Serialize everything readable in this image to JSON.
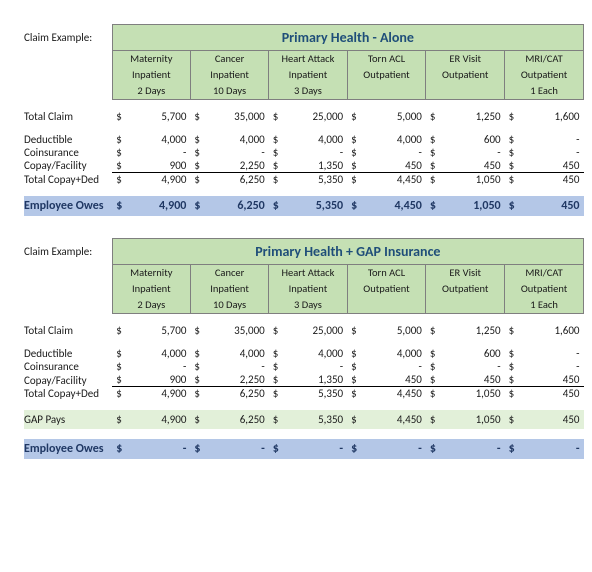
{
  "labels": {
    "claim_example": "Claim Example:",
    "total_claim": "Total Claim",
    "deductible": "Deductible",
    "coinsurance": "Coinsurance",
    "copay": "Copay/Facility",
    "total_copay_ded": "Total Copay+Ded",
    "employee_owes": "Employee Owes",
    "gap_pays": "GAP Pays"
  },
  "columns": [
    {
      "l1": "Maternity",
      "l2": "Inpatient",
      "l3": "2 Days"
    },
    {
      "l1": "Cancer",
      "l2": "Inpatient",
      "l3": "10 Days"
    },
    {
      "l1": "Heart Attack",
      "l2": "Inpatient",
      "l3": "3 Days"
    },
    {
      "l1": "Torn ACL",
      "l2": "Outpatient",
      "l3": ""
    },
    {
      "l1": "ER Visit",
      "l2": "Outpatient",
      "l3": ""
    },
    {
      "l1": "MRI/CAT",
      "l2": "Outpatient",
      "l3": "1 Each"
    }
  ],
  "tables": [
    {
      "title": "Primary Health - Alone",
      "rows": {
        "total_claim": [
          "5,700",
          "35,000",
          "25,000",
          "5,000",
          "1,250",
          "1,600"
        ],
        "deductible": [
          "4,000",
          "4,000",
          "4,000",
          "4,000",
          "600",
          "-"
        ],
        "coinsurance": [
          "-",
          "-",
          "-",
          "-",
          "-",
          "-"
        ],
        "copay": [
          "900",
          "2,250",
          "1,350",
          "450",
          "450",
          "450"
        ],
        "total_cd": [
          "4,900",
          "6,250",
          "5,350",
          "4,450",
          "1,050",
          "450"
        ],
        "gap_pays": null,
        "owes": [
          "4,900",
          "6,250",
          "5,350",
          "4,450",
          "1,050",
          "450"
        ]
      }
    },
    {
      "title": "Primary Health + GAP Insurance",
      "rows": {
        "total_claim": [
          "5,700",
          "35,000",
          "25,000",
          "5,000",
          "1,250",
          "1,600"
        ],
        "deductible": [
          "4,000",
          "4,000",
          "4,000",
          "4,000",
          "600",
          "-"
        ],
        "coinsurance": [
          "-",
          "-",
          "-",
          "-",
          "-",
          "-"
        ],
        "copay": [
          "900",
          "2,250",
          "1,350",
          "450",
          "450",
          "450"
        ],
        "total_cd": [
          "4,900",
          "6,250",
          "5,350",
          "4,450",
          "1,050",
          "450"
        ],
        "gap_pays": [
          "4,900",
          "6,250",
          "5,350",
          "4,450",
          "1,050",
          "450"
        ],
        "owes": [
          "-",
          "-",
          "-",
          "-",
          "-",
          "-"
        ]
      }
    }
  ],
  "colors": {
    "header_bg": "#c5e0b4",
    "owes_bg": "#b4c7e7",
    "owes_text": "#203864",
    "gap_bg": "#e2f0d9",
    "border": "#7f7f7f"
  }
}
